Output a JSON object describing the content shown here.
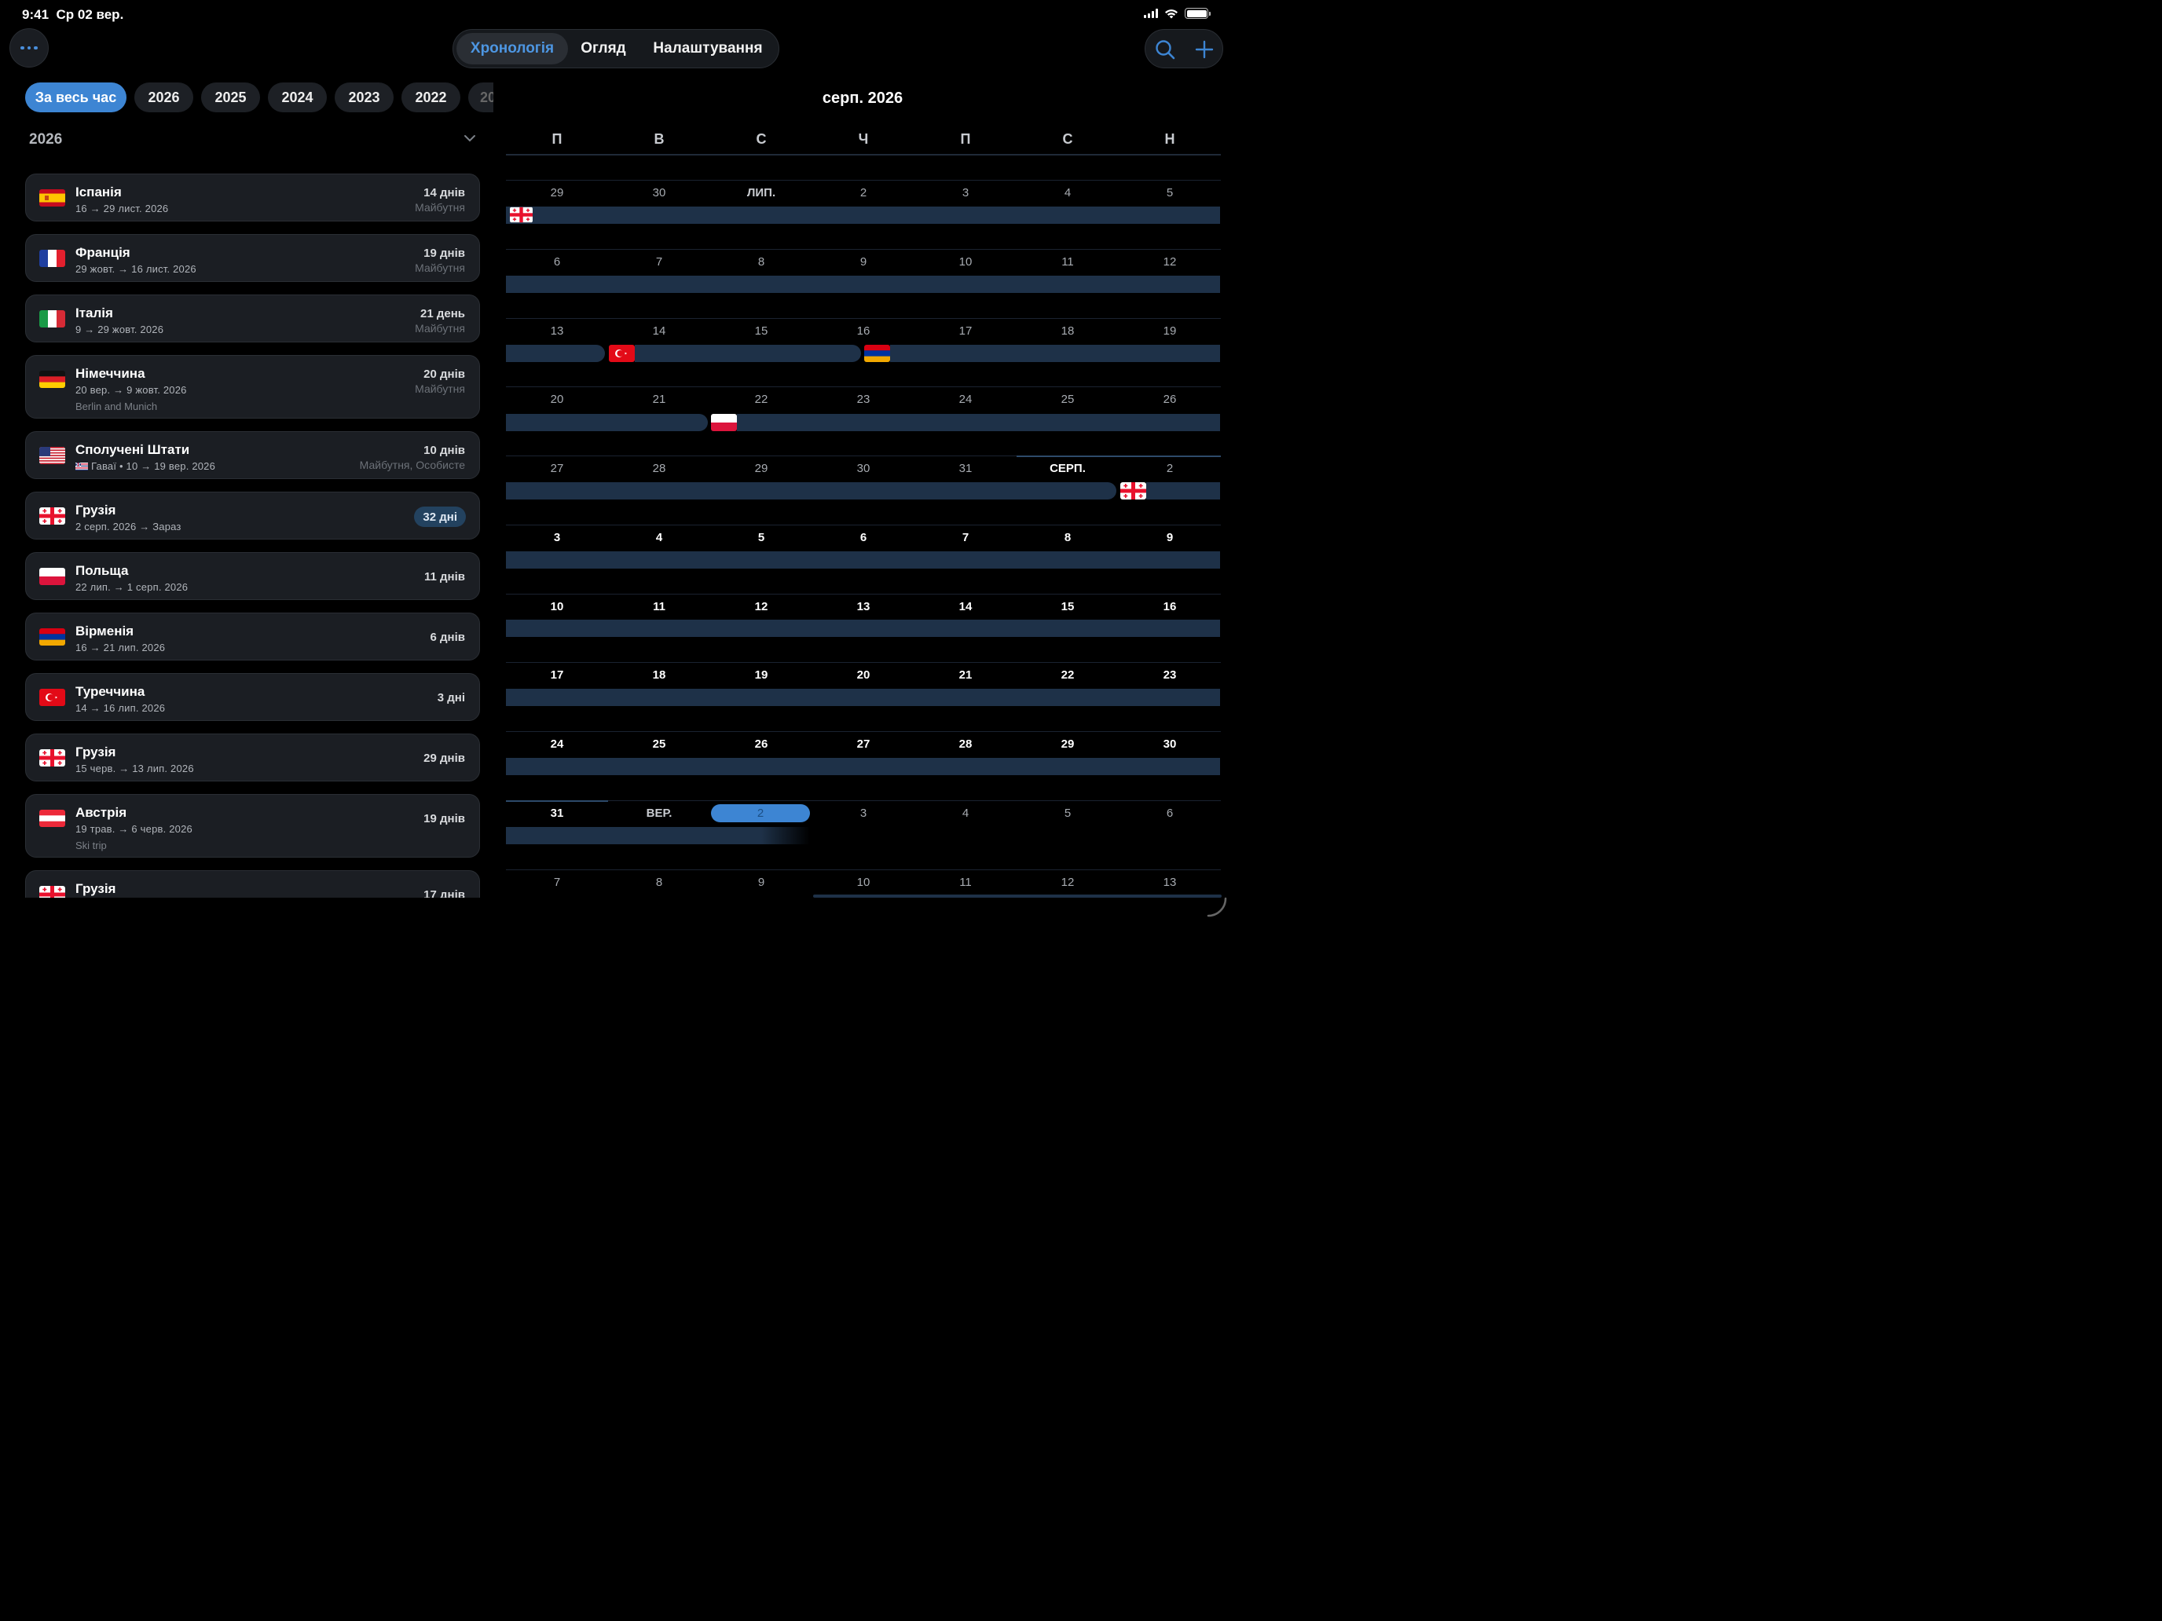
{
  "status": {
    "time": "9:41",
    "date": "Ср 02 вер."
  },
  "toolbar": {
    "tabs": [
      {
        "label": "Хронологія",
        "active": true
      },
      {
        "label": "Огляд",
        "active": false
      },
      {
        "label": "Налаштування",
        "active": false
      }
    ],
    "accent": "#3d85d3"
  },
  "year_chips": [
    {
      "label": "За весь час",
      "active": true
    },
    {
      "label": "2026"
    },
    {
      "label": "2025"
    },
    {
      "label": "2024"
    },
    {
      "label": "2023"
    },
    {
      "label": "2022"
    },
    {
      "label": "20"
    }
  ],
  "year_header": "2026",
  "trips": [
    {
      "flag": "spain",
      "country": "Іспанія",
      "dates": "16 → 29 лист. 2026",
      "days": "14 днів",
      "status": "Майбутня"
    },
    {
      "flag": "france",
      "country": "Франція",
      "dates": "29 жовт. → 16 лист. 2026",
      "days": "19 днів",
      "status": "Майбутня"
    },
    {
      "flag": "italy",
      "country": "Італія",
      "dates": "9 → 29 жовт. 2026",
      "days": "21 день",
      "status": "Майбутня"
    },
    {
      "flag": "germany",
      "country": "Німеччина",
      "dates": "20 вер. → 9 жовт. 2026",
      "days": "20 днів",
      "status": "Майбутня",
      "note": "Berlin and Munich"
    },
    {
      "flag": "usa",
      "country": "Сполучені Штати",
      "dates": "Гаваї • 10 → 19 вер. 2026",
      "days": "10 днів",
      "status": "Майбутня, Особисте"
    },
    {
      "flag": "georgia",
      "country": "Грузія",
      "dates": "2 серп. 2026 → Зараз",
      "days": "32 дні",
      "current": true
    },
    {
      "flag": "poland",
      "country": "Польща",
      "dates": "22 лип. → 1 серп. 2026",
      "days": "11 днів"
    },
    {
      "flag": "armenia",
      "country": "Вірменія",
      "dates": "16 → 21 лип. 2026",
      "days": "6 днів"
    },
    {
      "flag": "turkey",
      "country": "Туреччина",
      "dates": "14 → 16 лип. 2026",
      "days": "3 дні"
    },
    {
      "flag": "georgia",
      "country": "Грузія",
      "dates": "15 черв. → 13 лип. 2026",
      "days": "29 днів"
    },
    {
      "flag": "austria",
      "country": "Австрія",
      "dates": "19 трав. → 6 черв. 2026",
      "days": "19 днів",
      "note": "Ski trip"
    },
    {
      "flag": "georgia",
      "country": "Грузія",
      "dates": "",
      "days": "17 днів"
    }
  ],
  "calendar": {
    "title": "серп. 2026",
    "weekdays": [
      "П",
      "В",
      "С",
      "Ч",
      "П",
      "С",
      "Н"
    ],
    "weeks": [
      [
        "29",
        "30",
        "ЛИП.",
        "2",
        "3",
        "4",
        "5"
      ],
      [
        "6",
        "7",
        "8",
        "9",
        "10",
        "11",
        "12"
      ],
      [
        "13",
        "14",
        "15",
        "16",
        "17",
        "18",
        "19"
      ],
      [
        "20",
        "21",
        "22",
        "23",
        "24",
        "25",
        "26"
      ],
      [
        "27",
        "28",
        "29",
        "30",
        "31",
        "СЕРП.",
        "2"
      ],
      [
        "3",
        "4",
        "5",
        "6",
        "7",
        "8",
        "9"
      ],
      [
        "10",
        "11",
        "12",
        "13",
        "14",
        "15",
        "16"
      ],
      [
        "17",
        "18",
        "19",
        "20",
        "21",
        "22",
        "23"
      ],
      [
        "24",
        "25",
        "26",
        "27",
        "28",
        "29",
        "30"
      ],
      [
        "31",
        "ВЕР.",
        "2",
        "3",
        "4",
        "5",
        "6"
      ],
      [
        "7",
        "8",
        "9",
        "10",
        "11",
        "12",
        "13"
      ]
    ],
    "today": "2",
    "bar_color": "#1e3148"
  }
}
